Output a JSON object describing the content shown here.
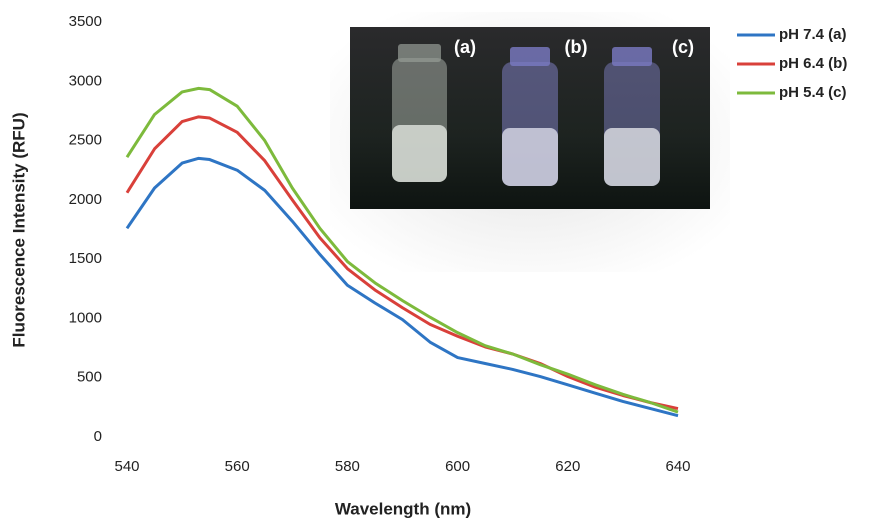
{
  "chart_data": {
    "type": "line",
    "x_label": "Wavelength (nm)",
    "y_label": "Fluorescence Intensity (RFU)",
    "x": [
      540,
      545,
      550,
      553,
      555,
      560,
      565,
      570,
      575,
      580,
      585,
      590,
      595,
      600,
      605,
      610,
      615,
      620,
      625,
      630,
      635,
      640
    ],
    "series": [
      {
        "name": "pH 7.4 (a)",
        "color": "#2e75c4",
        "values": [
          1760,
          2100,
          2310,
          2350,
          2340,
          2250,
          2080,
          1820,
          1540,
          1280,
          1130,
          990,
          800,
          670,
          620,
          570,
          510,
          440,
          370,
          300,
          240,
          180
        ]
      },
      {
        "name": "pH 6.4 (b)",
        "color": "#d9403a",
        "values": [
          2060,
          2430,
          2660,
          2700,
          2690,
          2570,
          2330,
          2000,
          1680,
          1420,
          1240,
          1090,
          950,
          850,
          760,
          700,
          620,
          510,
          420,
          350,
          290,
          240
        ]
      },
      {
        "name": "pH 5.4 (c)",
        "color": "#7dba3c",
        "values": [
          2360,
          2720,
          2910,
          2940,
          2930,
          2790,
          2500,
          2100,
          1760,
          1480,
          1300,
          1150,
          1010,
          880,
          770,
          700,
          610,
          530,
          440,
          360,
          290,
          210
        ]
      }
    ],
    "xlim": [
      540,
      640
    ],
    "xticks": [
      540,
      560,
      580,
      600,
      620,
      640
    ],
    "ylim": [
      0,
      3500
    ],
    "yticks": [
      0,
      500,
      1000,
      1500,
      2000,
      2500,
      3000,
      3500
    ],
    "grid": false,
    "legend": "right",
    "inset_labels": [
      "(a)",
      "(b)",
      "(c)"
    ]
  }
}
